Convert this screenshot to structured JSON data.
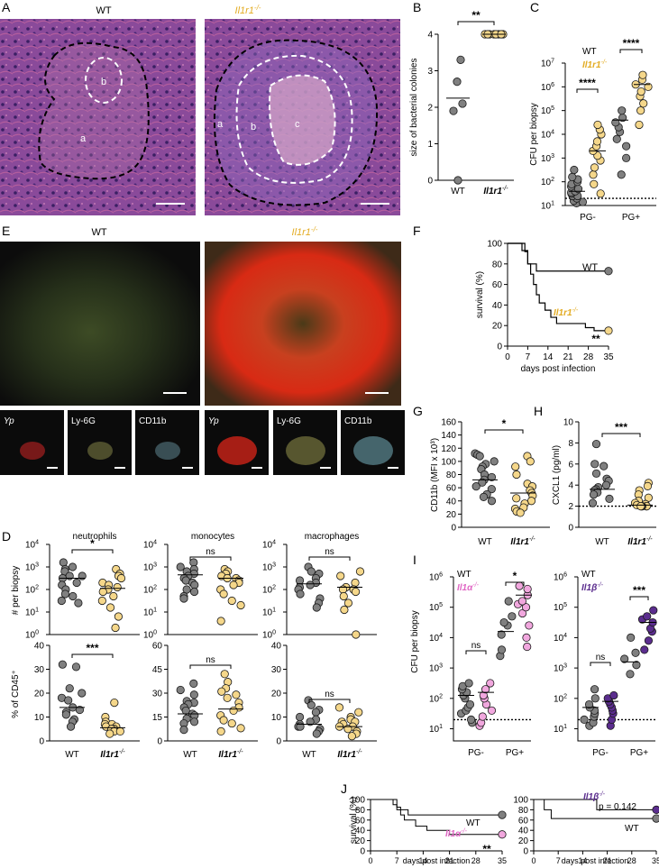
{
  "panel_letters": [
    "A",
    "B",
    "C",
    "D",
    "E",
    "F",
    "G",
    "H",
    "I",
    "J"
  ],
  "colors": {
    "wt": "#808080",
    "ko": "#f5d78a",
    "il1a": "#f1a7de",
    "il1b": "#5b2d8e",
    "dark": "#1a1a1a"
  },
  "panel_a": {
    "left": {
      "title": "WT",
      "regions": [
        "a",
        "b"
      ]
    },
    "right": {
      "title": "Il1r1",
      "title_sup": "-/-",
      "regions": [
        "a",
        "b",
        "c"
      ]
    }
  },
  "panel_d": {
    "left_title": "WT",
    "right_title": "Il1r1",
    "right_title_sup": "-/-",
    "channels": [
      "Yp",
      "Ly-6G",
      "CD11b",
      "Yp",
      "Ly-6G",
      "CD11b"
    ]
  },
  "chart_data": [
    {
      "id": "B",
      "type": "scatter",
      "ylabel": "size of bacterial colonies",
      "ylim": [
        0,
        4
      ],
      "yticks": [
        "0",
        "1",
        "2",
        "3",
        "4"
      ],
      "categories": [
        "WT",
        "Il1r1-/-"
      ],
      "series": [
        {
          "name": "WT",
          "values": [
            0,
            1.9,
            2.1,
            2.7,
            3.3
          ],
          "median": 2.25
        },
        {
          "name": "Il1r1-/-",
          "values": [
            4,
            4,
            4,
            4,
            4,
            4,
            4,
            4
          ],
          "median": 4
        }
      ],
      "significance": [
        {
          "pair": [
            0,
            1
          ],
          "label": "**"
        }
      ]
    },
    {
      "id": "C",
      "type": "scatter",
      "scale": "log",
      "ylabel": "CFU per biopsy",
      "ylim": [
        10,
        10000000
      ],
      "yticks": [
        "10",
        "10",
        "10",
        "10",
        "10",
        "10",
        "10"
      ],
      "ytick_exp": [
        "1",
        "2",
        "3",
        "4",
        "5",
        "6",
        "7"
      ],
      "categories": [
        "PG-",
        "PG+"
      ],
      "legend": [
        "WT",
        "Il1r1-/-"
      ],
      "significance": [
        {
          "label": "****"
        },
        {
          "label": "****"
        }
      ]
    },
    {
      "id": "E",
      "type": "line",
      "ylabel": "survival (%)",
      "xlabel": "days post infection",
      "ylim": [
        0,
        100
      ],
      "yticks": [
        "0",
        "20",
        "40",
        "60",
        "80",
        "100"
      ],
      "xticks": [
        "0",
        "7",
        "14",
        "21",
        "28",
        "35"
      ],
      "series": [
        {
          "name": "WT",
          "end": 73
        },
        {
          "name": "Il1r1-/-",
          "end": 15
        }
      ],
      "significance": "**"
    },
    {
      "id": "G",
      "type": "scatter",
      "ylabel": "CD11b (MFI x 10³)",
      "ylim": [
        0,
        160
      ],
      "yticks": [
        "0",
        "20",
        "40",
        "60",
        "80",
        "100",
        "120",
        "140",
        "160"
      ],
      "categories": [
        "WT",
        "Il1r1-/-"
      ],
      "significance": "*"
    },
    {
      "id": "H",
      "type": "scatter",
      "ylabel": "CXCL1 (pg/ml)",
      "ylim": [
        0,
        10
      ],
      "yticks": [
        "0",
        "2",
        "4",
        "6",
        "8",
        "10"
      ],
      "categories": [
        "WT",
        "Il1r1-/-"
      ],
      "significance": "***"
    },
    {
      "id": "F",
      "type": "scatter",
      "columns": [
        "neutrophils",
        "monocytes",
        "macrophages"
      ],
      "top_ylabel": "# per biopsy",
      "top_yticks": [
        "10",
        "10",
        "10",
        "10",
        "10"
      ],
      "top_ytick_exp": [
        "0",
        "1",
        "2",
        "3",
        "4"
      ],
      "top_sig": [
        "*",
        "ns",
        "ns"
      ],
      "bottom_ylabel": "% of CD45⁺",
      "bottom_yticks": [
        [
          "0",
          "10",
          "20",
          "30",
          "40"
        ],
        [
          "0",
          "15",
          "30",
          "45",
          "60"
        ],
        [
          "0",
          "10",
          "20",
          "30",
          "40"
        ]
      ],
      "bottom_sig": [
        "***",
        "ns",
        "ns"
      ],
      "categories": [
        "WT",
        "Il1r1-/-"
      ]
    },
    {
      "id": "I",
      "type": "scatter",
      "scale": "log",
      "ylabel": "CFU per biopsy",
      "yticks": [
        "10",
        "10",
        "10",
        "10",
        "10",
        "10"
      ],
      "ytick_exp": [
        "1",
        "2",
        "3",
        "4",
        "5",
        "6"
      ],
      "categories": [
        "PG-",
        "PG+"
      ],
      "left": {
        "legend": [
          "WT",
          "Il1α-/-"
        ],
        "sig": [
          "ns",
          "*"
        ]
      },
      "right": {
        "legend": [
          "WT",
          "Il1β-/-"
        ],
        "sig": [
          "ns",
          "***"
        ]
      }
    },
    {
      "id": "J",
      "type": "line",
      "ylabel": "survival (%)",
      "xlabel": "days post infection",
      "yticks": [
        "0",
        "20",
        "40",
        "60",
        "80",
        "100"
      ],
      "xticks": [
        "0",
        "7",
        "14",
        "21",
        "28",
        "35"
      ],
      "left": {
        "series": [
          "WT",
          "Il1α-/-"
        ],
        "sig": "**"
      },
      "right": {
        "series": [
          "Il1β-/-",
          "WT"
        ],
        "pval": "p = 0.142"
      }
    }
  ]
}
